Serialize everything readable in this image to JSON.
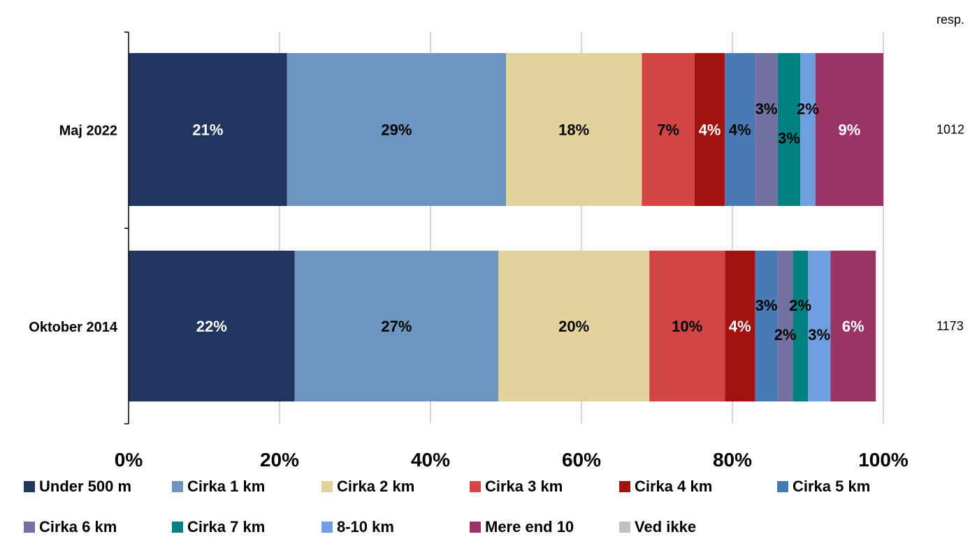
{
  "resp_header": "resp.",
  "chart_data": {
    "type": "bar",
    "orientation": "horizontal",
    "stacked": true,
    "percent_stacked": true,
    "title": "",
    "xlabel": "",
    "ylabel": "",
    "xlim": [
      0,
      100
    ],
    "x_ticks": [
      "0%",
      "20%",
      "40%",
      "60%",
      "80%",
      "100%"
    ],
    "grid": true,
    "legend_position": "bottom",
    "categories": [
      "Maj 2022",
      "Oktober 2014"
    ],
    "respondents": [
      "1012",
      "1173"
    ],
    "series": [
      {
        "name": "Under 500 m",
        "color": "#203560",
        "label_color": "#ffffff",
        "values": [
          21,
          22
        ],
        "labels": [
          "21%",
          "22%"
        ]
      },
      {
        "name": "Cirka 1 km",
        "color": "#6e95c0",
        "label_color": "#000000",
        "values": [
          29,
          27
        ],
        "labels": [
          "29%",
          "27%"
        ]
      },
      {
        "name": "Cirka 2 km",
        "color": "#e3d29c",
        "label_color": "#000000",
        "values": [
          18,
          20
        ],
        "labels": [
          "18%",
          "20%"
        ]
      },
      {
        "name": "Cirka 3 km",
        "color": "#d24545",
        "label_color": "#000000",
        "values": [
          7,
          10
        ],
        "labels": [
          "7%",
          "10%"
        ]
      },
      {
        "name": "Cirka 4 km",
        "color": "#a11210",
        "label_color": "#ffffff",
        "values": [
          4,
          4
        ],
        "labels": [
          "4%",
          "4%"
        ]
      },
      {
        "name": "Cirka 5 km",
        "color": "#4a7ab5",
        "label_color": "#000000",
        "values": [
          4,
          3
        ],
        "labels": [
          "4%",
          "3%"
        ]
      },
      {
        "name": "Cirka 6 km",
        "color": "#7371a0",
        "label_color": "#000000",
        "values": [
          3,
          2
        ],
        "labels": [
          "3%",
          "2%"
        ]
      },
      {
        "name": "Cirka 7 km",
        "color": "#008080",
        "label_color": "#000000",
        "values": [
          3,
          2
        ],
        "labels": [
          "3%",
          "2%"
        ]
      },
      {
        "name": "8-10 km",
        "color": "#6f9fe0",
        "label_color": "#000000",
        "values": [
          2,
          3
        ],
        "labels": [
          "2%",
          "3%"
        ]
      },
      {
        "name": "Mere end 10",
        "color": "#9a3464",
        "label_color": "#ffffff",
        "values": [
          9,
          6
        ],
        "labels": [
          "9%",
          "6%"
        ]
      },
      {
        "name": "Ved ikke",
        "color": "#c0c0c0",
        "label_color": "#000000",
        "values": [
          0,
          0
        ],
        "labels": [
          "",
          ""
        ]
      }
    ]
  }
}
